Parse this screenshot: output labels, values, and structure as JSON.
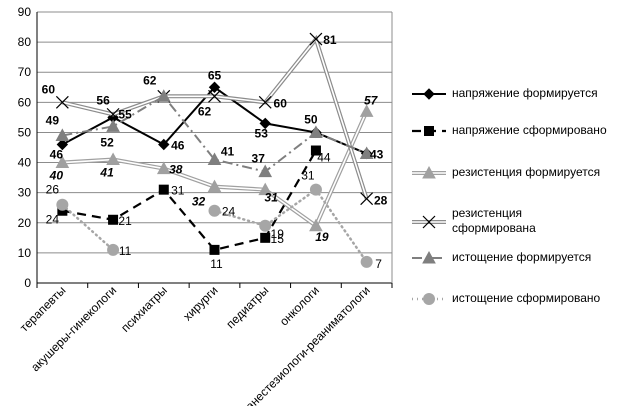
{
  "chart_data": {
    "type": "line",
    "categories": [
      "терапевты",
      "акушеры-гинекологи",
      "психиатры",
      "хирурги",
      "педиатры",
      "онкологи",
      "анестезиологи-реаниматологи"
    ],
    "ylim": [
      0,
      90
    ],
    "yticks": [
      0,
      10,
      20,
      30,
      40,
      50,
      60,
      70,
      80,
      90
    ],
    "grid": true,
    "legend_position": "right",
    "series": [
      {
        "name": "напряжение формируется",
        "values": [
          46,
          55,
          46,
          65,
          53,
          50,
          43
        ],
        "labels": [
          "46",
          "55",
          "46",
          "65",
          "53",
          "50",
          "43"
        ],
        "color": "#000000",
        "style": "solid-diamond"
      },
      {
        "name": "напряжение сформировано",
        "values": [
          24,
          21,
          31,
          11,
          15,
          44,
          null
        ],
        "labels": [
          "24",
          "21",
          "31",
          "11",
          "15",
          "44",
          ""
        ],
        "color": "#000000",
        "style": "dashed-square"
      },
      {
        "name": "резистенция формируется",
        "values": [
          40,
          41,
          38,
          32,
          31,
          19,
          57
        ],
        "labels": [
          "40",
          "41",
          "38",
          "32",
          "31",
          "19",
          "57"
        ],
        "color": "#a0a0a0",
        "style": "double-triangle"
      },
      {
        "name": "резистенция сформирована",
        "values": [
          60,
          56,
          62,
          62,
          60,
          81,
          28
        ],
        "labels": [
          "60",
          "56",
          "62",
          "62",
          "60",
          "81",
          "28"
        ],
        "color": "#8c8c8c",
        "style": "double-x"
      },
      {
        "name": "истощение формируется",
        "values": [
          49,
          52,
          62,
          41,
          37,
          50,
          43
        ],
        "labels": [
          "49",
          "52",
          "",
          "41",
          "37",
          "",
          ""
        ],
        "color": "#7f7f7f",
        "style": "dashdot-triangle"
      },
      {
        "name": "истощение сформировано",
        "values": [
          26,
          11,
          null,
          24,
          19,
          31,
          7
        ],
        "labels": [
          "26",
          "11",
          "",
          "24",
          "19",
          "31",
          "7"
        ],
        "color": "#a6a6a6",
        "style": "dotted-circle"
      }
    ]
  }
}
